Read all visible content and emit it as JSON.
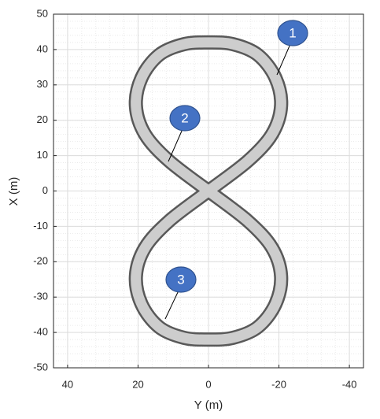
{
  "chart_data": {
    "type": "line",
    "x_label": "Y (m)",
    "y_label": "X (m)",
    "x": [
      0,
      11.2,
      18,
      20.6,
      19,
      14,
      7,
      0,
      -7,
      -14,
      -19,
      -20.6,
      -18,
      -11.2,
      0,
      11.2,
      18,
      20.6,
      19,
      14,
      7,
      0,
      -7,
      -14,
      -19,
      -20.6,
      -18,
      -11.2,
      0
    ],
    "values": [
      0,
      8.5,
      16,
      24,
      32,
      38.5,
      41.5,
      42,
      41.5,
      38.5,
      32,
      24,
      16,
      8.5,
      0,
      -8.5,
      -16,
      -24,
      -32,
      -38.5,
      -41.5,
      -42,
      -41.5,
      -38.5,
      -32,
      -24,
      -16,
      -8.5,
      0
    ],
    "color": "#cdcdcd",
    "edge_color": "#595959",
    "xlim": [
      44,
      -44
    ],
    "xticks": [
      40,
      20,
      0,
      -20,
      -40
    ],
    "ylim": [
      -50,
      50
    ],
    "yticks": [
      -50,
      -40,
      -30,
      -20,
      -10,
      0,
      10,
      20,
      30,
      40,
      50
    ],
    "grid": true,
    "minor_grid": true,
    "annotations": [
      "1",
      "2",
      "3"
    ]
  }
}
